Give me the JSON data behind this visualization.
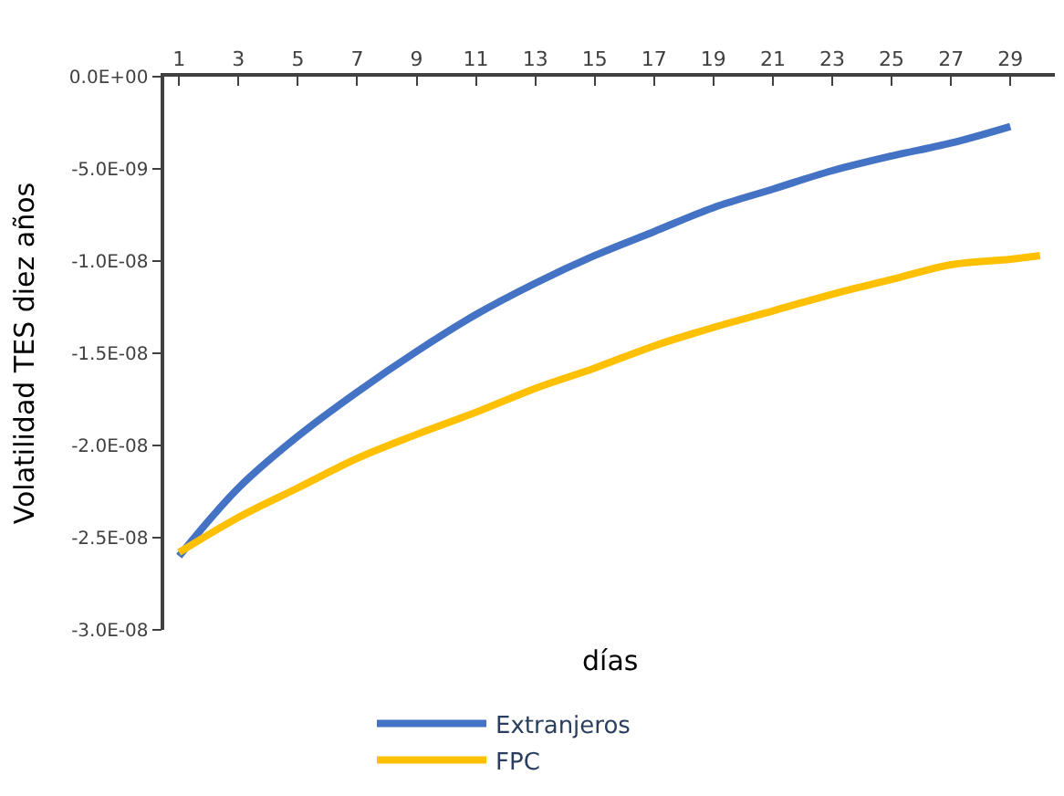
{
  "chart_data": {
    "type": "line",
    "xlabel": "días",
    "ylabel": "Volatilidad TES diez años",
    "xlim": [
      0.5,
      30.5
    ],
    "xticks": [
      1,
      3,
      5,
      7,
      9,
      11,
      13,
      15,
      17,
      19,
      21,
      23,
      25,
      27,
      29
    ],
    "ylim": [
      -3e-08,
      0
    ],
    "yticks": [
      {
        "value": 0,
        "label": "0.0E+00"
      },
      {
        "value": -5e-09,
        "label": "-5.0E-09"
      },
      {
        "value": -1e-08,
        "label": "-1.0E-08"
      },
      {
        "value": -1.5e-08,
        "label": "-1.5E-08"
      },
      {
        "value": -2e-08,
        "label": "-2.0E-08"
      },
      {
        "value": -2.5e-08,
        "label": "-2.5E-08"
      },
      {
        "value": -3e-08,
        "label": "-3.0E-08"
      }
    ],
    "legend": "bottom",
    "marker": "none",
    "line_style": "solid",
    "series": [
      {
        "name": "Extranjeros",
        "color": "#4472c4",
        "x": [
          1,
          3,
          5,
          7,
          9,
          11,
          13,
          15,
          17,
          19,
          21,
          23,
          25,
          27,
          29
        ],
        "values": [
          -2.6e-08,
          -2.23e-08,
          -1.95e-08,
          -1.71e-08,
          -1.49e-08,
          -1.29e-08,
          -1.12e-08,
          -9.7e-09,
          -8.4e-09,
          -7.1e-09,
          -6.1e-09,
          -5.1e-09,
          -4.3e-09,
          -3.6e-09,
          -2.7e-09
        ]
      },
      {
        "name": "FPC",
        "color": "#ffc000",
        "x": [
          1,
          3,
          5,
          7,
          9,
          11,
          13,
          15,
          17,
          19,
          21,
          23,
          25,
          27,
          29,
          30
        ],
        "values": [
          -2.58e-08,
          -2.39e-08,
          -2.23e-08,
          -2.07e-08,
          -1.94e-08,
          -1.82e-08,
          -1.69e-08,
          -1.58e-08,
          -1.46e-08,
          -1.36e-08,
          -1.27e-08,
          -1.18e-08,
          -1.1e-08,
          -1.02e-08,
          -9.9e-09,
          -9.7e-09
        ]
      }
    ]
  }
}
